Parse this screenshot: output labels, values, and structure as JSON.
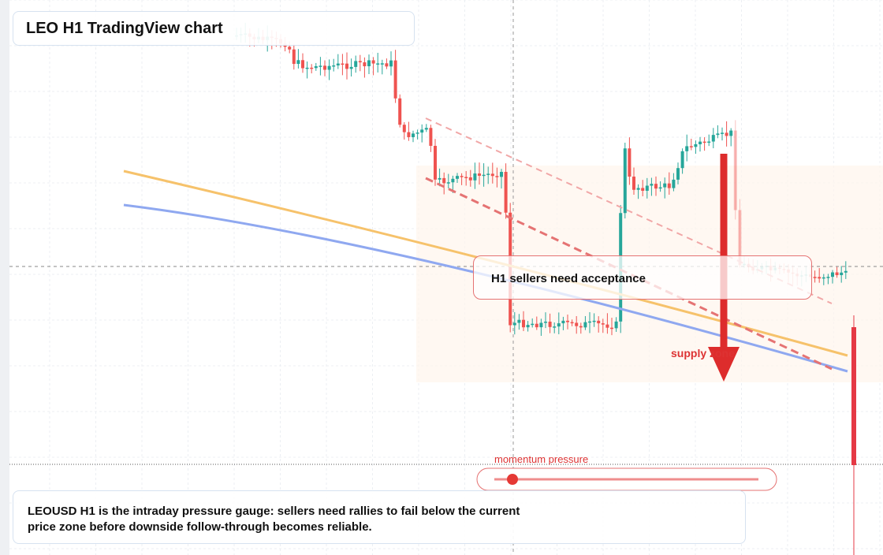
{
  "header": {
    "title": "LEO H1 TradingView chart"
  },
  "annotations": {
    "acceptance": "H1 sellers need acceptance",
    "zone": "supply zone",
    "gauge": "momentum pressure"
  },
  "footer": {
    "lines": [
      "LEOUSD H1 is the intraday pressure gauge: sellers need rallies to fail below the current",
      "price zone before downside follow-through becomes reliable."
    ]
  }
}
